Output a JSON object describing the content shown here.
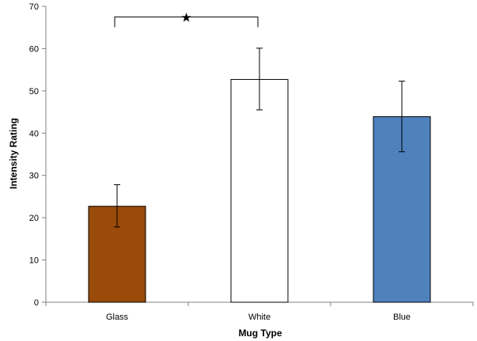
{
  "chart_data": {
    "type": "bar",
    "title": "",
    "xlabel": "Mug Type",
    "ylabel": "Intensity Rating",
    "ylim": [
      0,
      70
    ],
    "yticks": [
      0,
      10,
      20,
      30,
      40,
      50,
      60,
      70
    ],
    "grid": false,
    "categories": [
      "Glass",
      "White",
      "Blue"
    ],
    "values": [
      22.7,
      52.7,
      43.9
    ],
    "error_low": [
      17.8,
      45.5,
      35.6
    ],
    "error_high": [
      27.8,
      60.1,
      52.3
    ],
    "colors": [
      "#9a4a09",
      "#ffffff",
      "#4f81bd"
    ],
    "significance": {
      "between": [
        "Glass",
        "White"
      ],
      "marker": "★",
      "y": 67.5
    }
  }
}
